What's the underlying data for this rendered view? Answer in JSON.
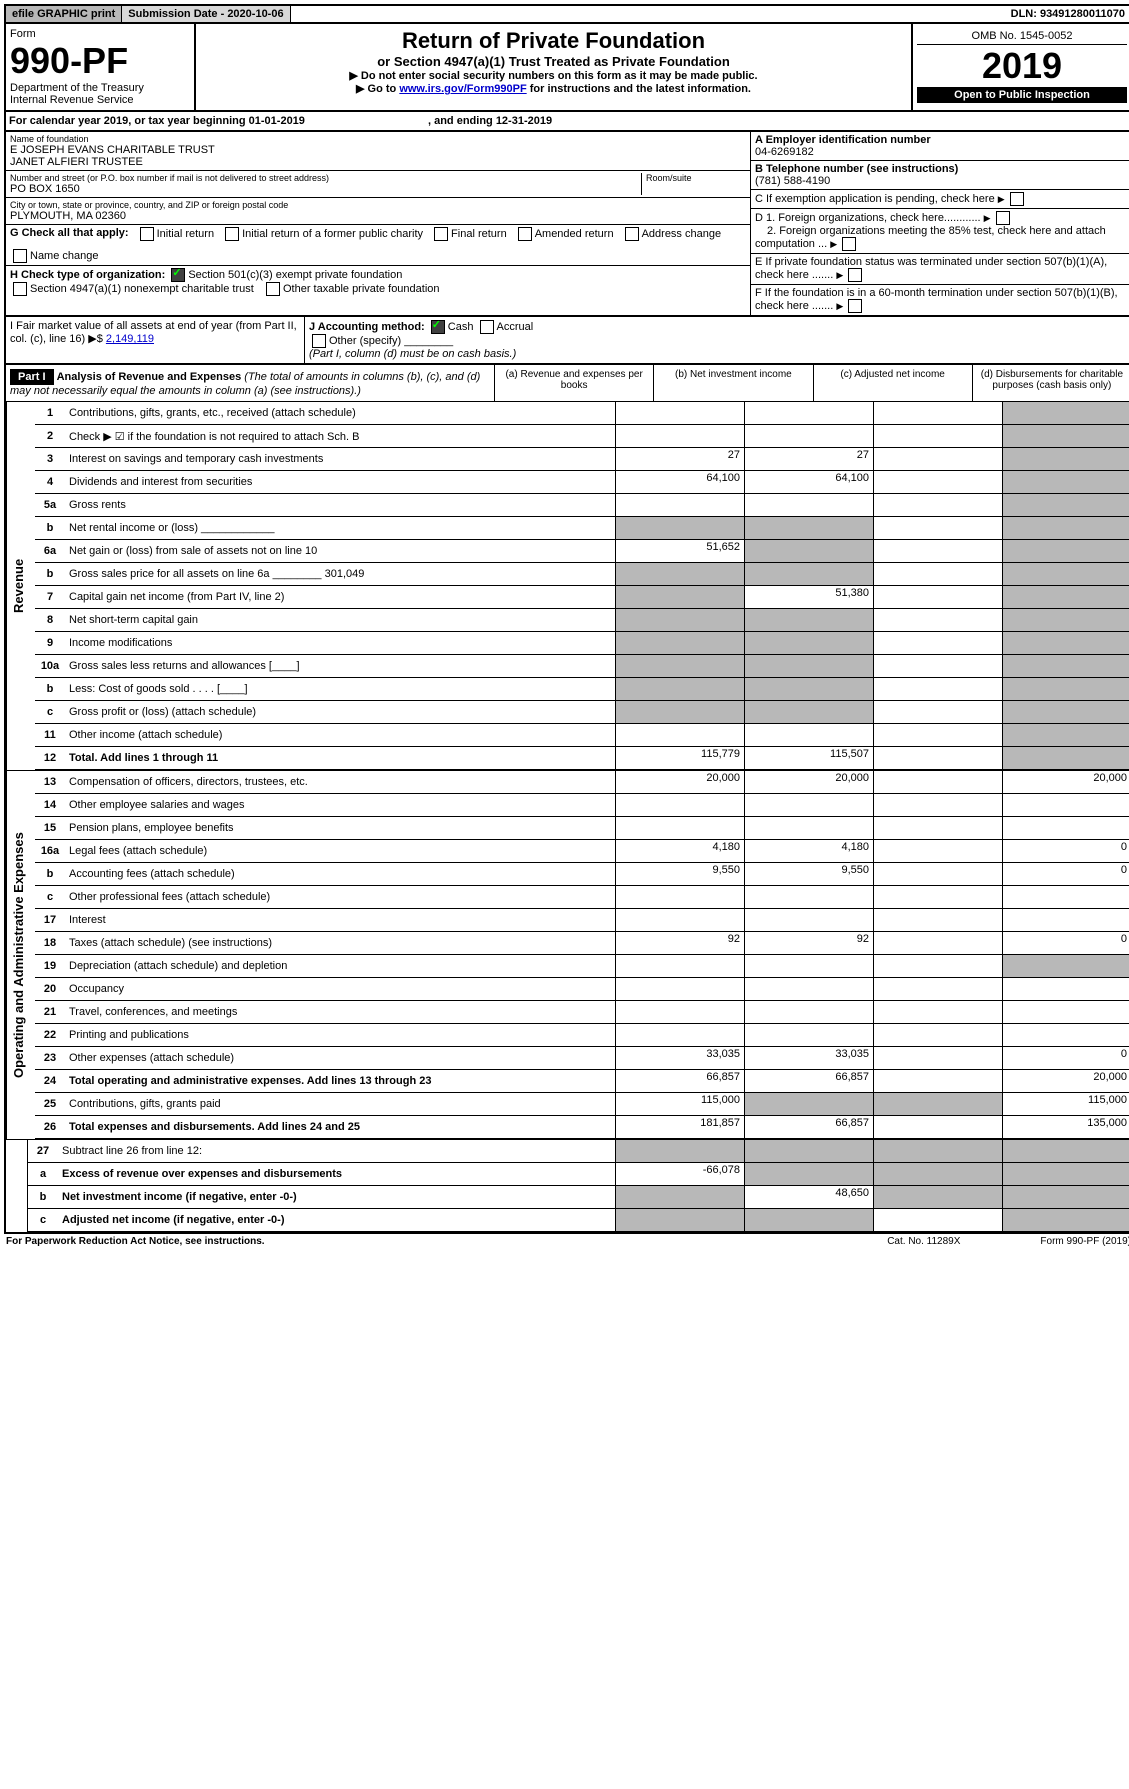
{
  "top": {
    "efile": "efile GRAPHIC print",
    "sub": "Submission Date - 2020-10-06",
    "dln": "DLN: 93491280011070"
  },
  "hdr": {
    "form": "Form",
    "num": "990-PF",
    "dept": "Department of the Treasury",
    "irs": "Internal Revenue Service",
    "title": "Return of Private Foundation",
    "sub": "or Section 4947(a)(1) Trust Treated as Private Foundation",
    "w1": "▶ Do not enter social security numbers on this form as it may be made public.",
    "w2": "▶ Go to ",
    "link": "www.irs.gov/Form990PF",
    "w3": " for instructions and the latest information.",
    "omb": "OMB No. 1545-0052",
    "year": "2019",
    "otp": "Open to Public Inspection"
  },
  "cal": {
    "t": "For calendar year 2019, or tax year beginning 01-01-2019",
    "e": ", and ending 12-31-2019"
  },
  "id": {
    "name_l": "Name of foundation",
    "name": "E JOSEPH EVANS CHARITABLE TRUST",
    "name2": "JANET ALFIERI TRUSTEE",
    "addr_l": "Number and street (or P.O. box number if mail is not delivered to street address)",
    "addr": "PO BOX 1650",
    "room_l": "Room/suite",
    "city_l": "City or town, state or province, country, and ZIP or foreign postal code",
    "city": "PLYMOUTH, MA  02360",
    "ein_l": "A Employer identification number",
    "ein": "04-6269182",
    "tel_l": "B Telephone number (see instructions)",
    "tel": "(781) 588-4190",
    "c": "C If exemption application is pending, check here",
    "d1": "D 1. Foreign organizations, check here............",
    "d2": "2. Foreign organizations meeting the 85% test, check here and attach computation ...",
    "e": "E If private foundation status was terminated under section 507(b)(1)(A), check here .......",
    "f": "F If the foundation is in a 60-month termination under section 507(b)(1)(B), check here ......."
  },
  "g": {
    "l": "G Check all that apply:",
    "o1": "Initial return",
    "o2": "Initial return of a former public charity",
    "o3": "Final return",
    "o4": "Amended return",
    "o5": "Address change",
    "o6": "Name change"
  },
  "h": {
    "l": "H Check type of organization:",
    "o1": "Section 501(c)(3) exempt private foundation",
    "o2": "Section 4947(a)(1) nonexempt charitable trust",
    "o3": "Other taxable private foundation"
  },
  "i": {
    "l": "I Fair market value of all assets at end of year (from Part II, col. (c), line 16) ▶$ ",
    "v": "2,149,119"
  },
  "j": {
    "l": "J Accounting method:",
    "o1": "Cash",
    "o2": "Accrual",
    "o3": "Other (specify)",
    "n": "(Part I, column (d) must be on cash basis.)"
  },
  "p1": {
    "t": "Part I",
    "h": "Analysis of Revenue and Expenses",
    "hn": "(The total of amounts in columns (b), (c), and (d) may not necessarily equal the amounts in column (a) (see instructions).)",
    "ca": "(a)   Revenue and expenses per books",
    "cb": "(b)  Net investment income",
    "cc": "(c)  Adjusted net income",
    "cd": "(d)  Disbursements for charitable purposes (cash basis only)"
  },
  "rev": "Revenue",
  "ope": "Operating and Administrative Expenses",
  "rows": [
    {
      "n": "1",
      "d": "Contributions, gifts, grants, etc., received (attach schedule)",
      "a": "",
      "b": "",
      "gdc": true
    },
    {
      "n": "2",
      "d": "Check ▶ ☑ if the foundation is not required to attach Sch. B",
      "a": "",
      "b": "",
      "gdc": true,
      "bold": false
    },
    {
      "n": "3",
      "d": "Interest on savings and temporary cash investments",
      "a": "27",
      "b": "27",
      "gdc": true
    },
    {
      "n": "4",
      "d": "Dividends and interest from securities",
      "a": "64,100",
      "b": "64,100",
      "gdc": true
    },
    {
      "n": "5a",
      "d": "Gross rents",
      "a": "",
      "b": "",
      "gdc": true
    },
    {
      "n": "b",
      "d": "Net rental income or (loss) ____________",
      "ga": true,
      "gb": true,
      "gdc": true
    },
    {
      "n": "6a",
      "d": "Net gain or (loss) from sale of assets not on line 10",
      "a": "51,652",
      "gb": true,
      "gdc": true
    },
    {
      "n": "b",
      "d": "Gross sales price for all assets on line 6a ________ 301,049",
      "ga": true,
      "gb": true,
      "gdc": true
    },
    {
      "n": "7",
      "d": "Capital gain net income (from Part IV, line 2)",
      "ga": true,
      "b": "51,380",
      "gdc": true
    },
    {
      "n": "8",
      "d": "Net short-term capital gain",
      "ga": true,
      "gb": true,
      "gdc": true
    },
    {
      "n": "9",
      "d": "Income modifications",
      "ga": true,
      "gb": true,
      "gdc": true
    },
    {
      "n": "10a",
      "d": "Gross sales less returns and allowances  [____]",
      "ga": true,
      "gb": true,
      "gdc": true
    },
    {
      "n": "b",
      "d": "Less: Cost of goods sold   .  .  .  .  [____]",
      "ga": true,
      "gb": true,
      "gdc": true
    },
    {
      "n": "c",
      "d": "Gross profit or (loss) (attach schedule)",
      "ga": true,
      "gb": true,
      "gdc": true
    },
    {
      "n": "11",
      "d": "Other income (attach schedule)",
      "a": "",
      "b": "",
      "gdc": true
    },
    {
      "n": "12",
      "d": "Total. Add lines 1 through 11",
      "a": "115,779",
      "b": "115,507",
      "gdc": true,
      "bold": true
    }
  ],
  "rows2": [
    {
      "n": "13",
      "d": "Compensation of officers, directors, trustees, etc.",
      "a": "20,000",
      "b": "20,000",
      "dd": "20,000"
    },
    {
      "n": "14",
      "d": "Other employee salaries and wages"
    },
    {
      "n": "15",
      "d": "Pension plans, employee benefits"
    },
    {
      "n": "16a",
      "d": "Legal fees (attach schedule)",
      "a": "4,180",
      "b": "4,180",
      "dd": "0"
    },
    {
      "n": "b",
      "d": "Accounting fees (attach schedule)",
      "a": "9,550",
      "b": "9,550",
      "dd": "0"
    },
    {
      "n": "c",
      "d": "Other professional fees (attach schedule)"
    },
    {
      "n": "17",
      "d": "Interest"
    },
    {
      "n": "18",
      "d": "Taxes (attach schedule) (see instructions)",
      "a": "92",
      "b": "92",
      "dd": "0"
    },
    {
      "n": "19",
      "d": "Depreciation (attach schedule) and depletion",
      "gdd": true
    },
    {
      "n": "20",
      "d": "Occupancy"
    },
    {
      "n": "21",
      "d": "Travel, conferences, and meetings"
    },
    {
      "n": "22",
      "d": "Printing and publications"
    },
    {
      "n": "23",
      "d": "Other expenses (attach schedule)",
      "a": "33,035",
      "b": "33,035",
      "dd": "0"
    },
    {
      "n": "24",
      "d": "Total operating and administrative expenses. Add lines 13 through 23",
      "a": "66,857",
      "b": "66,857",
      "dd": "20,000",
      "bold": true
    },
    {
      "n": "25",
      "d": "Contributions, gifts, grants paid",
      "a": "115,000",
      "gb": true,
      "gc": true,
      "dd": "115,000"
    },
    {
      "n": "26",
      "d": "Total expenses and disbursements. Add lines 24 and 25",
      "a": "181,857",
      "b": "66,857",
      "dd": "135,000",
      "bold": true
    }
  ],
  "rows3": [
    {
      "n": "27",
      "d": "Subtract line 26 from line 12:",
      "ga": true,
      "gb": true,
      "gc": true,
      "gdd": true
    },
    {
      "n": "a",
      "d": "Excess of revenue over expenses and disbursements",
      "a": "-66,078",
      "gb": true,
      "gc": true,
      "gdd": true,
      "bold": true
    },
    {
      "n": "b",
      "d": "Net investment income (if negative, enter -0-)",
      "ga": true,
      "b": "48,650",
      "gc": true,
      "gdd": true,
      "bold": true
    },
    {
      "n": "c",
      "d": "Adjusted net income (if negative, enter -0-)",
      "ga": true,
      "gb": true,
      "gdd": true,
      "bold": true
    }
  ],
  "foot": {
    "l": "For Paperwork Reduction Act Notice, see instructions.",
    "c": "Cat. No. 11289X",
    "r": "Form 990-PF (2019)"
  }
}
